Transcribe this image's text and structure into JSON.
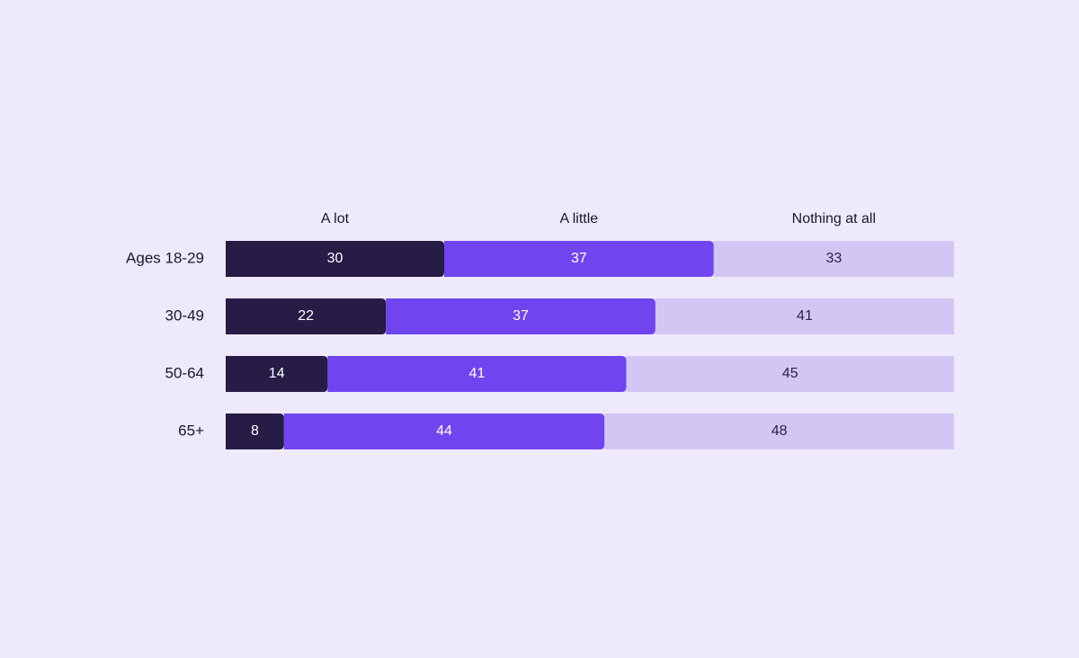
{
  "chart_data": {
    "type": "bar",
    "orientation": "horizontal",
    "stacked": true,
    "categories": [
      "Ages 18-29",
      "30-49",
      "50-64",
      "65+"
    ],
    "series": [
      {
        "name": "A lot",
        "values": [
          30,
          22,
          14,
          8
        ],
        "color": "#261C45",
        "label_color": "#FFFFFF"
      },
      {
        "name": "A little",
        "values": [
          37,
          37,
          41,
          44
        ],
        "color": "#7045EF",
        "label_color": "#FFFFFF"
      },
      {
        "name": "Nothing at all",
        "values": [
          33,
          41,
          45,
          48
        ],
        "color": "#D2C6F5",
        "label_color": "#2A2540"
      }
    ],
    "xlim": [
      0,
      100
    ],
    "grid": false,
    "legend_position": "top"
  },
  "colors": {
    "background": "#EEEAFB",
    "text": "#1B1730"
  }
}
